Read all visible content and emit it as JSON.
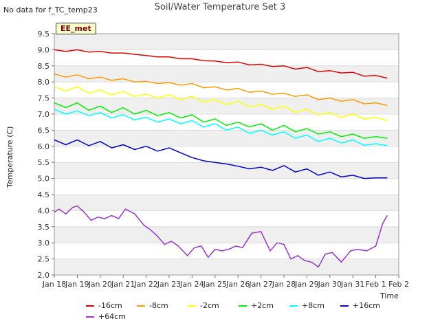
{
  "note": "No data for f_TC_temp23",
  "badge": "EE_met",
  "chart_data": {
    "type": "line",
    "title": "Soil/Water Temperature Set 3",
    "xlabel": "Time",
    "ylabel": "Temperature (C)",
    "ylim": [
      2.0,
      9.5
    ],
    "xlim": [
      0,
      15
    ],
    "y_ticks": [
      "2.0",
      "2.5",
      "3.0",
      "3.5",
      "4.0",
      "4.5",
      "5.0",
      "5.5",
      "6.0",
      "6.5",
      "7.0",
      "7.5",
      "8.0",
      "8.5",
      "9.0",
      "9.5"
    ],
    "x_ticks": [
      "Jan 18",
      "Jan 19",
      "Jan 20",
      "Jan 21",
      "Jan 22",
      "Jan 23",
      "Jan 24",
      "Jan 25",
      "Jan 26",
      "Jan 27",
      "Jan 28",
      "Jan 29",
      "Jan 30",
      "Jan 31",
      "Feb 1",
      "Feb 2"
    ],
    "grid": true,
    "legend_position": "bottom",
    "series": [
      {
        "name": "-16cm",
        "color": "#dd0000",
        "x": [
          0,
          0.5,
          1,
          1.5,
          2,
          2.5,
          3,
          3.5,
          4,
          4.5,
          5,
          5.5,
          6,
          6.5,
          7,
          7.5,
          8,
          8.5,
          9,
          9.5,
          10,
          10.5,
          11,
          11.5,
          12,
          12.5,
          13,
          13.5,
          14,
          14.5
        ],
        "y": [
          9.0,
          8.95,
          9.0,
          8.93,
          8.95,
          8.9,
          8.9,
          8.86,
          8.82,
          8.78,
          8.78,
          8.72,
          8.72,
          8.66,
          8.65,
          8.6,
          8.62,
          8.53,
          8.55,
          8.48,
          8.5,
          8.4,
          8.45,
          8.32,
          8.35,
          8.28,
          8.3,
          8.18,
          8.2,
          8.12
        ]
      },
      {
        "name": "-8cm",
        "color": "#ff9900",
        "x": [
          0,
          0.5,
          1,
          1.5,
          2,
          2.5,
          3,
          3.5,
          4,
          4.5,
          5,
          5.5,
          6,
          6.5,
          7,
          7.5,
          8,
          8.5,
          9,
          9.5,
          10,
          10.5,
          11,
          11.5,
          12,
          12.5,
          13,
          13.5,
          14,
          14.5
        ],
        "y": [
          8.25,
          8.15,
          8.22,
          8.1,
          8.15,
          8.05,
          8.1,
          8.0,
          8.02,
          7.95,
          7.98,
          7.9,
          7.95,
          7.82,
          7.85,
          7.75,
          7.8,
          7.68,
          7.72,
          7.62,
          7.65,
          7.55,
          7.6,
          7.45,
          7.5,
          7.4,
          7.45,
          7.32,
          7.35,
          7.27
        ]
      },
      {
        "name": "-2cm",
        "color": "#ffff00",
        "x": [
          0,
          0.5,
          1,
          1.5,
          2,
          2.5,
          3,
          3.5,
          4,
          4.5,
          5,
          5.5,
          6,
          6.5,
          7,
          7.5,
          8,
          8.5,
          9,
          9.5,
          10,
          10.5,
          11,
          11.5,
          12,
          12.5,
          13,
          13.5,
          14,
          14.5
        ],
        "y": [
          7.85,
          7.72,
          7.85,
          7.65,
          7.75,
          7.6,
          7.7,
          7.55,
          7.62,
          7.5,
          7.6,
          7.45,
          7.55,
          7.38,
          7.45,
          7.3,
          7.4,
          7.22,
          7.3,
          7.15,
          7.25,
          7.05,
          7.15,
          6.98,
          7.05,
          6.9,
          7.0,
          6.85,
          6.9,
          6.8
        ]
      },
      {
        "name": "+2cm",
        "color": "#00ee00",
        "x": [
          0,
          0.5,
          1,
          1.5,
          2,
          2.5,
          3,
          3.5,
          4,
          4.5,
          5,
          5.5,
          6,
          6.5,
          7,
          7.5,
          8,
          8.5,
          9,
          9.5,
          10,
          10.5,
          11,
          11.5,
          12,
          12.5,
          13,
          13.5,
          14,
          14.5
        ],
        "y": [
          7.35,
          7.2,
          7.35,
          7.12,
          7.25,
          7.05,
          7.2,
          7.0,
          7.12,
          6.95,
          7.05,
          6.88,
          6.98,
          6.75,
          6.85,
          6.65,
          6.75,
          6.6,
          6.7,
          6.5,
          6.65,
          6.45,
          6.55,
          6.38,
          6.45,
          6.3,
          6.38,
          6.25,
          6.3,
          6.25
        ]
      },
      {
        "name": "+8cm",
        "color": "#00ffff",
        "x": [
          0,
          0.5,
          1,
          1.5,
          2,
          2.5,
          3,
          3.5,
          4,
          4.5,
          5,
          5.5,
          6,
          6.5,
          7,
          7.5,
          8,
          8.5,
          9,
          9.5,
          10,
          10.5,
          11,
          11.5,
          12,
          12.5,
          13,
          13.5,
          14,
          14.5
        ],
        "y": [
          7.15,
          7.0,
          7.1,
          6.95,
          7.05,
          6.88,
          6.98,
          6.82,
          6.9,
          6.75,
          6.85,
          6.7,
          6.8,
          6.6,
          6.7,
          6.5,
          6.6,
          6.4,
          6.5,
          6.35,
          6.45,
          6.25,
          6.35,
          6.15,
          6.25,
          6.1,
          6.2,
          6.03,
          6.08,
          6.02
        ]
      },
      {
        "name": "+16cm",
        "color": "#0000cc",
        "x": [
          0,
          0.5,
          1,
          1.5,
          2,
          2.5,
          3,
          3.5,
          4,
          4.5,
          5,
          5.5,
          6,
          6.5,
          7,
          7.5,
          8,
          8.5,
          9,
          9.5,
          10,
          10.5,
          11,
          11.5,
          12,
          12.5,
          13,
          13.5,
          14,
          14.5
        ],
        "y": [
          6.2,
          6.05,
          6.2,
          6.02,
          6.15,
          5.95,
          6.05,
          5.9,
          6.0,
          5.85,
          5.95,
          5.8,
          5.65,
          5.55,
          5.5,
          5.45,
          5.38,
          5.3,
          5.35,
          5.25,
          5.4,
          5.2,
          5.3,
          5.1,
          5.2,
          5.05,
          5.1,
          5.0,
          5.02,
          5.02
        ]
      },
      {
        "name": "+64cm",
        "color": "#9933cc",
        "x": [
          0,
          0.2,
          0.5,
          0.8,
          1,
          1.3,
          1.6,
          1.9,
          2.2,
          2.5,
          2.8,
          3.1,
          3.5,
          3.9,
          4.2,
          4.5,
          4.8,
          5.1,
          5.4,
          5.8,
          6.1,
          6.4,
          6.7,
          7.0,
          7.3,
          7.6,
          7.9,
          8.2,
          8.6,
          9,
          9.4,
          9.7,
          10.0,
          10.3,
          10.6,
          10.9,
          11.2,
          11.5,
          11.8,
          12.1,
          12.5,
          12.9,
          13.2,
          13.6,
          14,
          14.3,
          14.5
        ],
        "y": [
          3.95,
          4.05,
          3.9,
          4.1,
          4.15,
          3.95,
          3.7,
          3.8,
          3.75,
          3.85,
          3.75,
          4.05,
          3.9,
          3.55,
          3.4,
          3.2,
          2.95,
          3.05,
          2.9,
          2.6,
          2.85,
          2.9,
          2.55,
          2.8,
          2.75,
          2.8,
          2.9,
          2.85,
          3.3,
          3.35,
          2.75,
          3.0,
          2.95,
          2.5,
          2.6,
          2.45,
          2.4,
          2.25,
          2.65,
          2.7,
          2.4,
          2.75,
          2.8,
          2.75,
          2.9,
          3.6,
          3.85
        ]
      }
    ]
  }
}
